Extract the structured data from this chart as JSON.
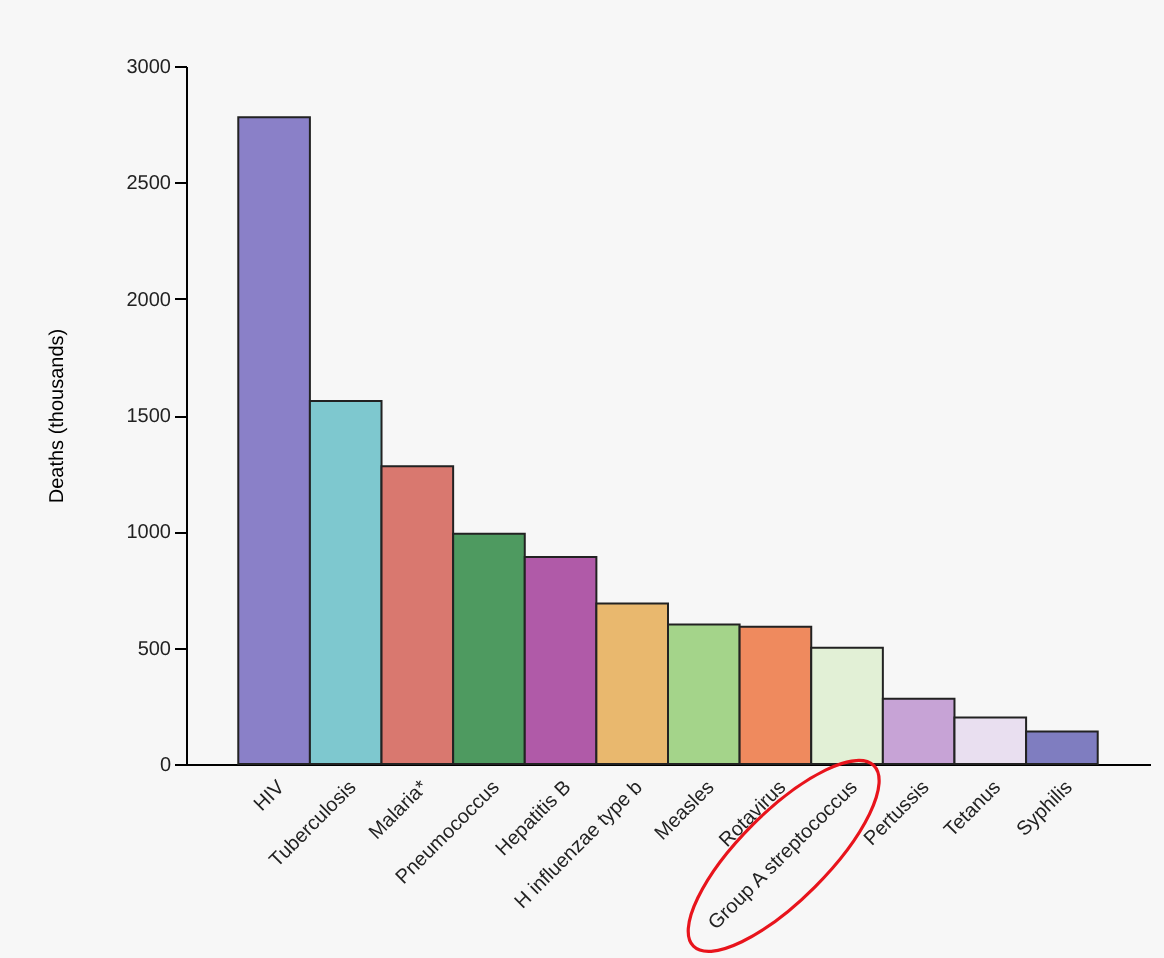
{
  "chart_data": {
    "type": "bar",
    "ylabel": "Deaths (thousands)",
    "categories": [
      "HIV",
      "Tuberculosis",
      "Malaria*",
      "Pneumococcus",
      "Hepatitis B",
      "H influenzae type b",
      "Measles",
      "Rotavirus",
      "Group A streptococcus",
      "Pertussis",
      "Tetanus",
      "Syphilis"
    ],
    "values": [
      2780,
      1560,
      1280,
      990,
      890,
      690,
      600,
      590,
      500,
      280,
      200,
      140
    ],
    "colors": [
      "#8a80c8",
      "#7ec8cf",
      "#d9786f",
      "#4e9a60",
      "#b05aa8",
      "#e9b86e",
      "#a4d48a",
      "#ef8a5e",
      "#e2f0d6",
      "#c7a3d6",
      "#e9dff0",
      "#7f7dc0"
    ],
    "ylim": [
      0,
      3000
    ],
    "yticks": [
      0,
      500,
      1000,
      1500,
      2000,
      2500,
      3000
    ],
    "grid": false
  }
}
